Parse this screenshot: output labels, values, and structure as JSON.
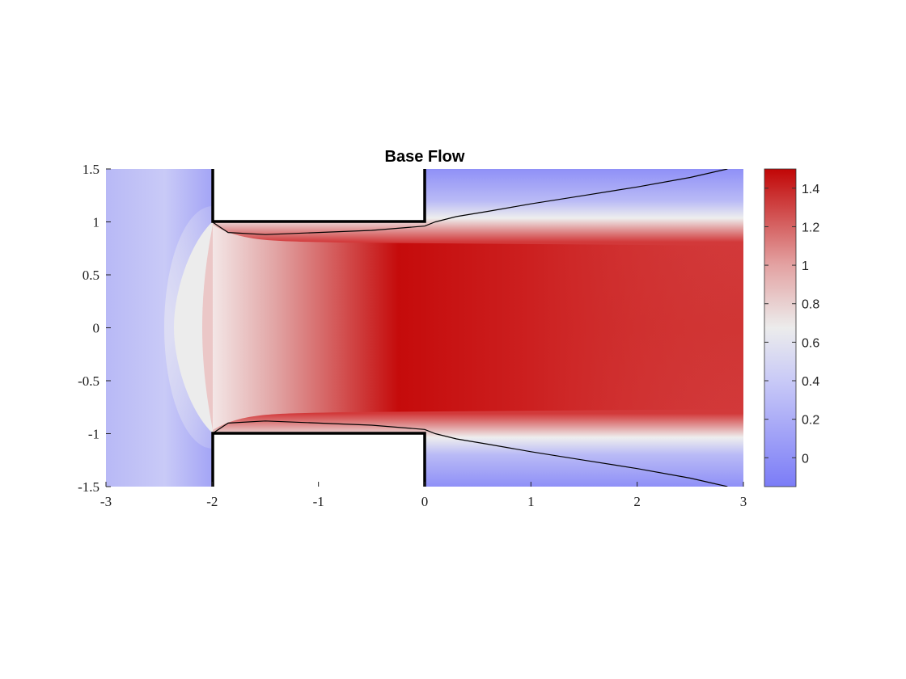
{
  "chart_data": {
    "type": "heatmap",
    "title": "Base Flow",
    "xlabel": "",
    "ylabel": "",
    "xlim": [
      -3,
      3
    ],
    "ylim": [
      -1.5,
      1.5
    ],
    "xticks": [
      "-3",
      "-2",
      "-1",
      "0",
      "1",
      "2",
      "3"
    ],
    "yticks": [
      "1.5",
      "1",
      "0.5",
      "0",
      "-0.5",
      "-1",
      "-1.5"
    ],
    "colorbar": {
      "range": [
        -0.15,
        1.5
      ],
      "ticks": [
        "1.4",
        "1.2",
        "1",
        "0.8",
        "0.6",
        "0.4",
        "0.2",
        "0"
      ],
      "colormap": [
        "#7b7cf7",
        "#ececec",
        "#c10606"
      ]
    },
    "colors": {
      "low": "#7b7cf7",
      "mid": "#ececec",
      "high": "#c10606",
      "walls": "#000000"
    },
    "walls": [
      {
        "name": "upper-block",
        "x": [
          -2,
          0
        ],
        "y": [
          1,
          1.5
        ]
      },
      {
        "name": "lower-block",
        "x": [
          -2,
          0
        ],
        "y": [
          -1.5,
          -1
        ]
      }
    ],
    "separatrix_upper": [
      [
        -2,
        1
      ],
      [
        -1.85,
        0.9
      ],
      [
        -1.5,
        0.88
      ],
      [
        -1,
        0.9
      ],
      [
        -0.5,
        0.92
      ],
      [
        0,
        0.96
      ],
      [
        0.1,
        1.0
      ],
      [
        0.3,
        1.05
      ],
      [
        0.6,
        1.1
      ],
      [
        1,
        1.17
      ],
      [
        1.5,
        1.25
      ],
      [
        2,
        1.33
      ],
      [
        2.5,
        1.42
      ],
      [
        2.85,
        1.5
      ]
    ],
    "separatrix_lower": [
      [
        -2,
        -1
      ],
      [
        -1.85,
        -0.9
      ],
      [
        -1.5,
        -0.88
      ],
      [
        -1,
        -0.9
      ],
      [
        -0.5,
        -0.92
      ],
      [
        0,
        -0.96
      ],
      [
        0.1,
        -1.0
      ],
      [
        0.3,
        -1.05
      ],
      [
        0.6,
        -1.1
      ],
      [
        1,
        -1.17
      ],
      [
        1.5,
        -1.25
      ],
      [
        2,
        -1.33
      ],
      [
        2.5,
        -1.42
      ],
      [
        2.85,
        -1.5
      ]
    ]
  }
}
